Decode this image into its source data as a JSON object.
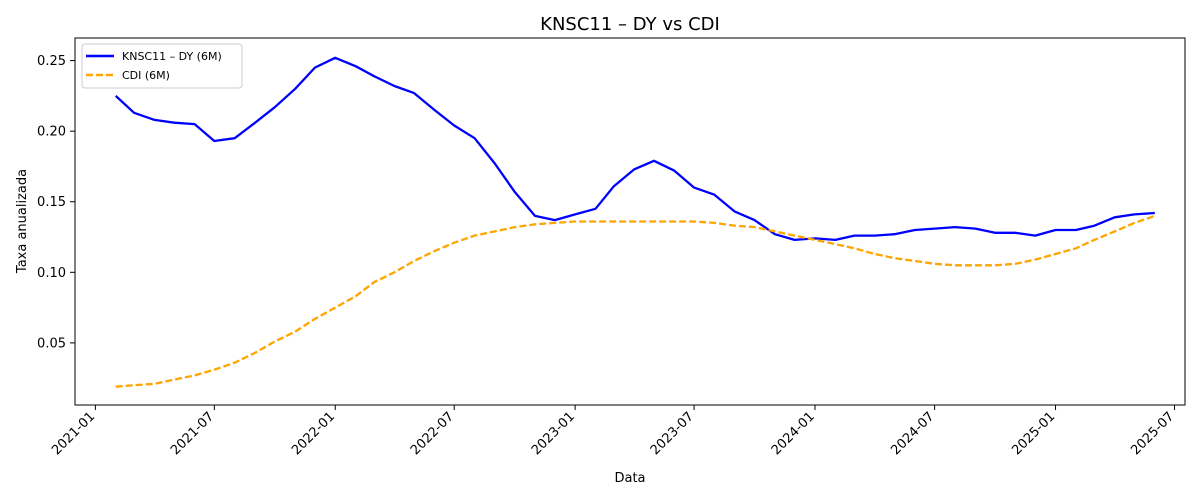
{
  "chart_data": {
    "type": "line",
    "title": "KNSC11 – DY vs CDI",
    "xlabel": "Data",
    "ylabel": "Taxa anualizada",
    "xlim": [
      "2020-12-01",
      "2025-07-17"
    ],
    "ylim": [
      0.006,
      0.266
    ],
    "x_ticks": [
      "2021-01",
      "2021-07",
      "2022-01",
      "2022-07",
      "2023-01",
      "2023-07",
      "2024-01",
      "2024-07",
      "2025-01",
      "2025-07"
    ],
    "y_ticks": [
      0.05,
      0.1,
      0.15,
      0.2,
      0.25
    ],
    "y_tick_labels": [
      "0.05",
      "0.10",
      "0.15",
      "0.20",
      "0.25"
    ],
    "legend_position": "upper-left",
    "x": [
      "2021-02",
      "2021-03",
      "2021-04",
      "2021-05",
      "2021-06",
      "2021-07",
      "2021-08",
      "2021-09",
      "2021-10",
      "2021-11",
      "2021-12",
      "2022-01",
      "2022-02",
      "2022-03",
      "2022-04",
      "2022-05",
      "2022-06",
      "2022-07",
      "2022-08",
      "2022-09",
      "2022-10",
      "2022-11",
      "2022-12",
      "2023-01",
      "2023-02",
      "2023-03",
      "2023-04",
      "2023-05",
      "2023-06",
      "2023-07",
      "2023-08",
      "2023-09",
      "2023-10",
      "2023-11",
      "2023-12",
      "2024-01",
      "2024-02",
      "2024-03",
      "2024-04",
      "2024-05",
      "2024-06",
      "2024-07",
      "2024-08",
      "2024-09",
      "2024-10",
      "2024-11",
      "2024-12",
      "2025-01",
      "2025-02",
      "2025-03",
      "2025-04",
      "2025-05",
      "2025-06"
    ],
    "series": [
      {
        "name": "KNSC11 – DY (6M)",
        "color": "#0000ff",
        "style": "solid",
        "values": [
          0.225,
          0.213,
          0.208,
          0.206,
          0.205,
          0.193,
          0.195,
          0.206,
          0.217,
          0.23,
          0.245,
          0.252,
          0.246,
          0.239,
          0.232,
          0.227,
          0.215,
          0.204,
          0.195,
          0.177,
          0.157,
          0.14,
          0.137,
          0.141,
          0.145,
          0.161,
          0.173,
          0.179,
          0.172,
          0.16,
          0.155,
          0.143,
          0.137,
          0.127,
          0.123,
          0.124,
          0.123,
          0.126,
          0.126,
          0.127,
          0.13,
          0.131,
          0.132,
          0.131,
          0.128,
          0.128,
          0.126,
          0.13,
          0.13,
          0.133,
          0.139,
          0.141,
          0.142
        ]
      },
      {
        "name": "CDI (6M)",
        "color": "#ffa500",
        "style": "dashed",
        "values": [
          0.019,
          0.02,
          0.021,
          0.024,
          0.027,
          0.031,
          0.036,
          0.043,
          0.051,
          0.058,
          0.067,
          0.075,
          0.083,
          0.093,
          0.1,
          0.108,
          0.115,
          0.121,
          0.126,
          0.129,
          0.132,
          0.134,
          0.135,
          0.136,
          0.136,
          0.136,
          0.136,
          0.136,
          0.136,
          0.136,
          0.135,
          0.133,
          0.132,
          0.129,
          0.126,
          0.123,
          0.12,
          0.117,
          0.113,
          0.11,
          0.108,
          0.106,
          0.105,
          0.105,
          0.105,
          0.106,
          0.109,
          0.113,
          0.117,
          0.123,
          0.129,
          0.135,
          0.14
        ]
      }
    ]
  }
}
